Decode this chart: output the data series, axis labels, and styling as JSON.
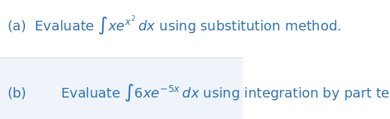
{
  "line_a_text_before": "(a)  Evaluate ",
  "line_a_math": "$\\int xe^{x^2} dx$",
  "line_a_text_after": " using substitution method.",
  "line_b_label": "(b)",
  "line_b_text_before": "Evaluate ",
  "line_b_math": "$\\int 6xe^{-5x} dx$",
  "line_b_text_after": " using integration by part technique.",
  "text_color": "#2E74B5",
  "bg_color_top": "#FFFFFF",
  "bg_color_bottom": "#EEF4FA",
  "separator_color": "#D0E4F2",
  "font_size_a": 14,
  "font_size_b": 14,
  "fig_width": 5.61,
  "fig_height": 1.72,
  "dpi": 100
}
